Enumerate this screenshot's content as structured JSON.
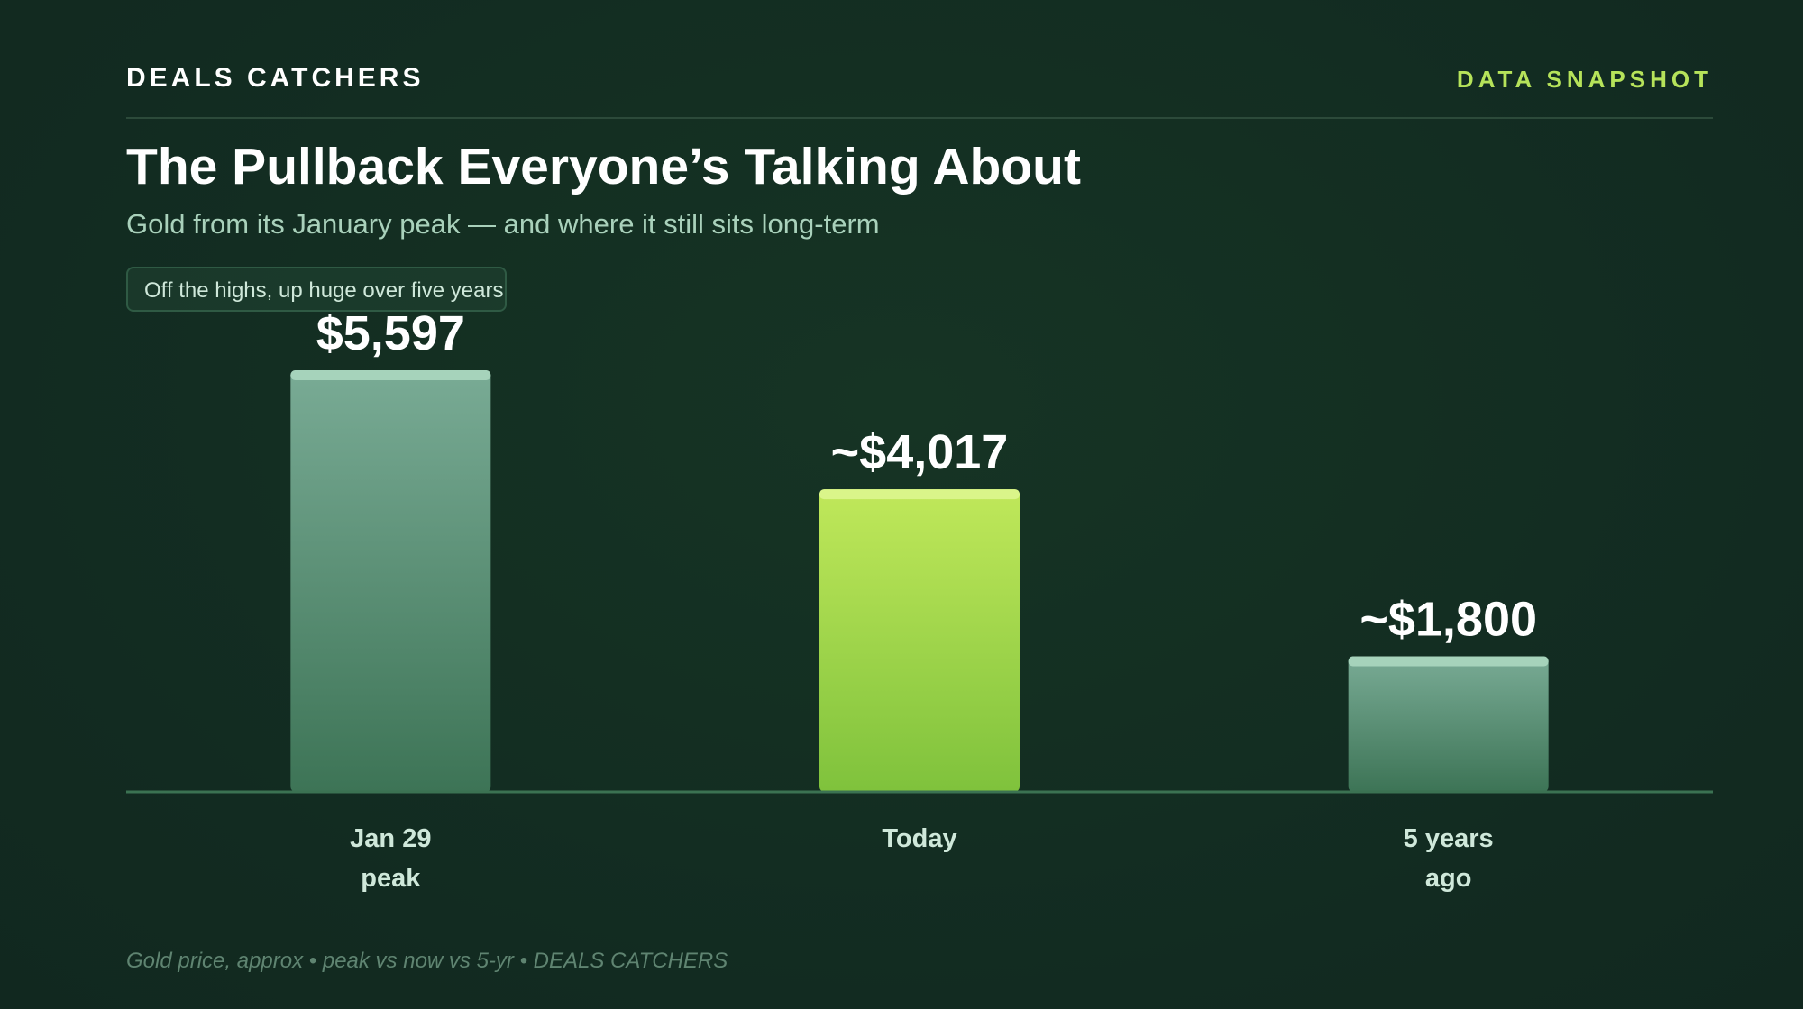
{
  "header": {
    "brand": "DEALS CATCHERS",
    "tag": "DATA SNAPSHOT"
  },
  "chart_data": {
    "type": "bar",
    "title": "The Pullback Everyone’s Talking About",
    "subtitle": "Gold from its January peak — and where it still sits long-term",
    "annotation": "Off the highs, up huge over five years",
    "categories": [
      [
        "Jan 29",
        "peak"
      ],
      [
        "Today"
      ],
      [
        "5 years",
        "ago"
      ]
    ],
    "values": [
      5597,
      4017,
      1800
    ],
    "value_labels": [
      "$5,597",
      "~$4,017",
      "~$1,800"
    ],
    "highlight_index": 1,
    "ylim": [
      0,
      6000
    ],
    "grid": false,
    "colors": {
      "muted_top": "#79ab95",
      "muted_bottom": "#3d7456",
      "muted_cap": "#a6d3bb",
      "highlight_top": "#c0e85a",
      "highlight_bottom": "#7fc23c",
      "highlight_cap": "#daf58a",
      "baseline": "#3b7252",
      "value_label": "#ffffff",
      "category_label": "#cfe8da"
    }
  },
  "footer": {
    "caption": "Gold price, approx • peak vs now vs 5-yr • DEALS CATCHERS"
  }
}
